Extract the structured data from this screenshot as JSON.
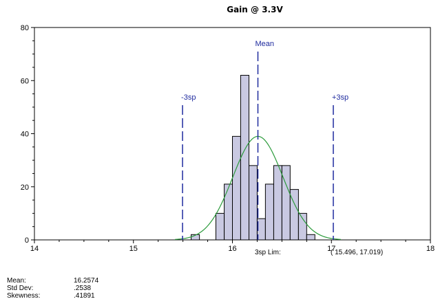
{
  "chart_data": {
    "type": "bar",
    "title": "Gain @ 3.3V",
    "xlabel": "",
    "ylabel": "",
    "xlim": [
      14,
      18
    ],
    "ylim": [
      0,
      80
    ],
    "xticks": [
      14,
      15,
      16,
      17,
      18
    ],
    "yticks": [
      0,
      20,
      40,
      60,
      80
    ],
    "grid": false,
    "bin_width": 0.0833,
    "bins": [
      {
        "x0": 15.583,
        "x1": 15.667,
        "count": 2
      },
      {
        "x0": 15.75,
        "x1": 15.833,
        "count": 0
      },
      {
        "x0": 15.833,
        "x1": 15.917,
        "count": 10
      },
      {
        "x0": 15.917,
        "x1": 16.0,
        "count": 21
      },
      {
        "x0": 16.0,
        "x1": 16.083,
        "count": 39
      },
      {
        "x0": 16.083,
        "x1": 16.167,
        "count": 62
      },
      {
        "x0": 16.167,
        "x1": 16.25,
        "count": 28
      },
      {
        "x0": 16.25,
        "x1": 16.333,
        "count": 8
      },
      {
        "x0": 16.333,
        "x1": 16.417,
        "count": 21
      },
      {
        "x0": 16.417,
        "x1": 16.5,
        "count": 28
      },
      {
        "x0": 16.5,
        "x1": 16.583,
        "count": 28
      },
      {
        "x0": 16.583,
        "x1": 16.667,
        "count": 19
      },
      {
        "x0": 16.667,
        "x1": 16.75,
        "count": 10
      },
      {
        "x0": 16.75,
        "x1": 16.833,
        "count": 2
      }
    ],
    "normal_curve": {
      "mean": 16.2574,
      "std_dev": 0.2538,
      "peak": 39,
      "color": "#2a9a3a"
    },
    "markers": [
      {
        "label": "-3sp",
        "x": 15.496
      },
      {
        "label": "Mean",
        "x": 16.2574
      },
      {
        "label": "+3sp",
        "x": 17.019
      }
    ],
    "limits_label": "3sp Lim:",
    "limits_value": "( 15.496,   17.019)",
    "stats": [
      {
        "label": "Mean:",
        "value": "16.2574"
      },
      {
        "label": "Std Dev:",
        "value": ".2538"
      },
      {
        "label": "Skewness:",
        "value": ".41891"
      }
    ],
    "colors": {
      "bar_fill": "#c9c9e2",
      "bar_stroke": "#000000",
      "marker": "#1e2a9e",
      "axis": "#000000"
    }
  }
}
